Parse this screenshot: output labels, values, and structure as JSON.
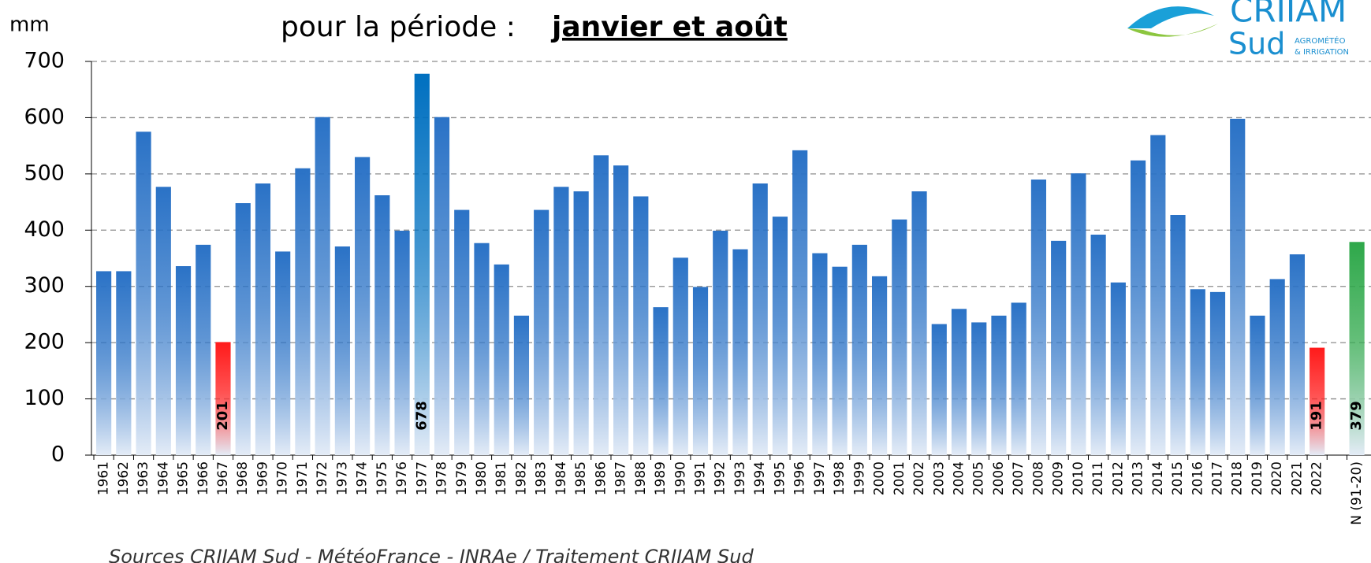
{
  "chart_data": {
    "type": "bar",
    "title_prefix": "pour la période :",
    "title_emphasis": "janvier et août",
    "y_label": "mm",
    "source": "Sources CRIIAM Sud - MétéoFrance - INRAe / Traitement CRIIAM Sud",
    "logo": {
      "name": "CRIIAM",
      "region": "Sud",
      "line1": "AGROMÉTÉO",
      "line2": "& IRRIGATION"
    },
    "categories": [
      "1961",
      "1962",
      "1963",
      "1964",
      "1965",
      "1966",
      "1967",
      "1968",
      "1969",
      "1970",
      "1971",
      "1972",
      "1973",
      "1974",
      "1975",
      "1976",
      "1977",
      "1978",
      "1979",
      "1980",
      "1981",
      "1982",
      "1983",
      "1984",
      "1985",
      "1986",
      "1987",
      "1988",
      "1989",
      "1990",
      "1991",
      "1992",
      "1993",
      "1994",
      "1995",
      "1996",
      "1997",
      "1998",
      "1999",
      "2000",
      "2001",
      "2002",
      "2003",
      "2004",
      "2005",
      "2006",
      "2007",
      "2008",
      "2009",
      "2010",
      "2011",
      "2012",
      "2013",
      "2014",
      "2015",
      "2016",
      "2017",
      "2018",
      "2019",
      "2020",
      "2021",
      "2022",
      null,
      "N (91-20)"
    ],
    "values": [
      327,
      327,
      575,
      477,
      336,
      374,
      201,
      448,
      483,
      362,
      510,
      601,
      371,
      530,
      462,
      399,
      678,
      601,
      436,
      377,
      339,
      248,
      436,
      477,
      469,
      533,
      515,
      460,
      263,
      351,
      299,
      399,
      366,
      483,
      424,
      542,
      359,
      335,
      374,
      318,
      419,
      469,
      233,
      260,
      236,
      248,
      271,
      490,
      381,
      501,
      392,
      307,
      524,
      569,
      427,
      295,
      290,
      598,
      248,
      313,
      357,
      191,
      null,
      379
    ],
    "colors": [
      "#2a72c6",
      "#2a72c6",
      "#2a72c6",
      "#2a72c6",
      "#2a72c6",
      "#2a72c6",
      "#ff1a1a",
      "#2a72c6",
      "#2a72c6",
      "#2a72c6",
      "#2a72c6",
      "#2a72c6",
      "#2a72c6",
      "#2a72c6",
      "#2a72c6",
      "#2a72c6",
      "#0070c0",
      "#2a72c6",
      "#2a72c6",
      "#2a72c6",
      "#2a72c6",
      "#2a72c6",
      "#2a72c6",
      "#2a72c6",
      "#2a72c6",
      "#2a72c6",
      "#2a72c6",
      "#2a72c6",
      "#2a72c6",
      "#2a72c6",
      "#2a72c6",
      "#2a72c6",
      "#2a72c6",
      "#2a72c6",
      "#2a72c6",
      "#2a72c6",
      "#2a72c6",
      "#2a72c6",
      "#2a72c6",
      "#2a72c6",
      "#2a72c6",
      "#2a72c6",
      "#2a72c6",
      "#2a72c6",
      "#2a72c6",
      "#2a72c6",
      "#2a72c6",
      "#2a72c6",
      "#2a72c6",
      "#2a72c6",
      "#2a72c6",
      "#2a72c6",
      "#2a72c6",
      "#2a72c6",
      "#2a72c6",
      "#2a72c6",
      "#2a72c6",
      "#2a72c6",
      "#2a72c6",
      "#2a72c6",
      "#2a72c6",
      "#ff1a1a",
      null,
      "#2ea84a"
    ],
    "value_labels": [
      null,
      null,
      null,
      null,
      null,
      null,
      "201",
      null,
      null,
      null,
      null,
      null,
      null,
      null,
      null,
      null,
      "678",
      null,
      null,
      null,
      null,
      null,
      null,
      null,
      null,
      null,
      null,
      null,
      null,
      null,
      null,
      null,
      null,
      null,
      null,
      null,
      null,
      null,
      null,
      null,
      null,
      null,
      null,
      null,
      null,
      null,
      null,
      null,
      null,
      null,
      null,
      null,
      null,
      null,
      null,
      null,
      null,
      null,
      null,
      null,
      null,
      "191",
      null,
      "379"
    ],
    "ylim": [
      0,
      700
    ],
    "yticks": [
      0,
      100,
      200,
      300,
      400,
      500,
      600,
      700
    ],
    "grid": true
  }
}
